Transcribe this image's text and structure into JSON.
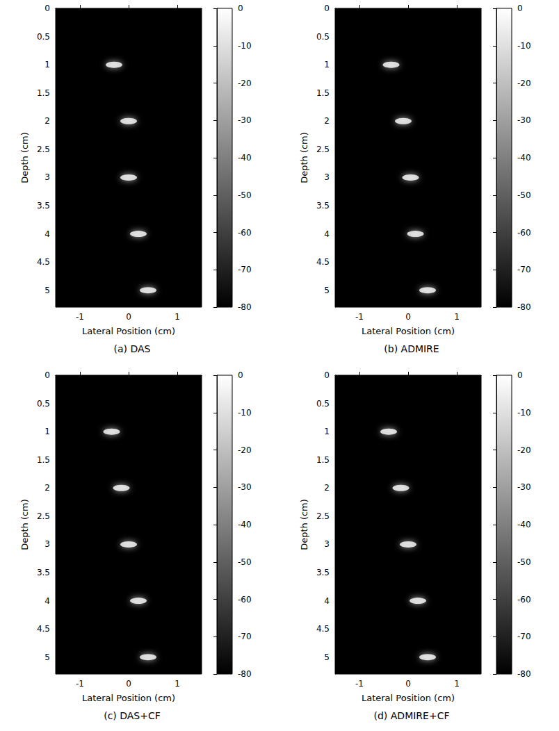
{
  "chart_data": [
    {
      "type": "scatter",
      "title": "(a) DAS",
      "x_label": "Lateral Position (cm)",
      "y_label": "Depth (cm)",
      "xlim": [
        -1.5,
        1.5
      ],
      "xticks": [
        -1,
        0,
        1
      ],
      "ylim": [
        0,
        5.3
      ],
      "yticks": [
        0,
        0.5,
        1,
        1.5,
        2,
        2.5,
        3,
        3.5,
        4,
        4.5,
        5
      ],
      "grid": false,
      "x": [
        -0.3,
        0,
        0,
        0.2,
        0.4
      ],
      "y": [
        1,
        2,
        3,
        4,
        5
      ],
      "values": [
        0,
        0,
        0,
        0,
        0
      ],
      "color_range": [
        -80,
        0
      ],
      "color_ticks": [
        0,
        -10,
        -20,
        -30,
        -40,
        -50,
        -60,
        -70,
        -80
      ]
    },
    {
      "type": "scatter",
      "title": "(b) ADMIRE",
      "x_label": "Lateral Position (cm)",
      "y_label": "Depth (cm)",
      "xlim": [
        -1.5,
        1.5
      ],
      "xticks": [
        -1,
        0,
        1
      ],
      "ylim": [
        0,
        5.3
      ],
      "yticks": [
        0,
        0.5,
        1,
        1.5,
        2,
        2.5,
        3,
        3.5,
        4,
        4.5,
        5
      ],
      "grid": false,
      "x": [
        -0.35,
        -0.1,
        0.05,
        0.15,
        0.4
      ],
      "y": [
        1,
        2,
        3,
        4,
        5
      ],
      "values": [
        0,
        0,
        0,
        0,
        0
      ],
      "color_range": [
        -80,
        0
      ],
      "color_ticks": [
        0,
        -10,
        -20,
        -30,
        -40,
        -50,
        -60,
        -70,
        -80
      ]
    },
    {
      "type": "scatter",
      "title": "(c) DAS+CF",
      "x_label": "Lateral Position (cm)",
      "y_label": "Depth (cm)",
      "xlim": [
        -1.5,
        1.5
      ],
      "xticks": [
        -1,
        0,
        1
      ],
      "ylim": [
        0,
        5.3
      ],
      "yticks": [
        0,
        0.5,
        1,
        1.5,
        2,
        2.5,
        3,
        3.5,
        4,
        4.5,
        5
      ],
      "grid": false,
      "x": [
        -0.35,
        -0.15,
        0,
        0.2,
        0.4
      ],
      "y": [
        1,
        2,
        3,
        4,
        5
      ],
      "values": [
        0,
        0,
        0,
        0,
        0
      ],
      "color_range": [
        -80,
        0
      ],
      "color_ticks": [
        0,
        -10,
        -20,
        -30,
        -40,
        -50,
        -60,
        -70,
        -80
      ]
    },
    {
      "type": "scatter",
      "title": "(d) ADMIRE+CF",
      "x_label": "Lateral Position (cm)",
      "y_label": "Depth (cm)",
      "xlim": [
        -1.5,
        1.5
      ],
      "xticks": [
        -1,
        0,
        1
      ],
      "ylim": [
        0,
        5.3
      ],
      "yticks": [
        0,
        0.5,
        1,
        1.5,
        2,
        2.5,
        3,
        3.5,
        4,
        4.5,
        5
      ],
      "grid": false,
      "x": [
        -0.4,
        -0.15,
        0,
        0.2,
        0.4
      ],
      "y": [
        1,
        2,
        3,
        4,
        5
      ],
      "values": [
        0,
        0,
        0,
        0,
        0
      ],
      "color_range": [
        -80,
        0
      ],
      "color_ticks": [
        0,
        -10,
        -20,
        -30,
        -40,
        -50,
        -60,
        -70,
        -80
      ]
    }
  ]
}
